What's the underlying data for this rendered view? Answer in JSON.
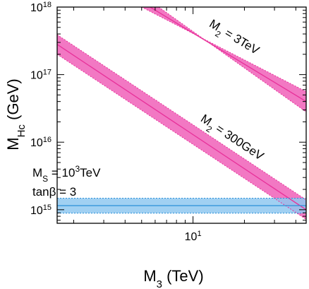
{
  "chart_data": {
    "type": "line",
    "xlabel": "M",
    "xlabel_sub": "3",
    "xlabel_unit": " (TeV)",
    "ylabel": "M",
    "ylabel_sub": "Hc",
    "ylabel_unit": " (GeV)",
    "xscale": "log",
    "yscale": "log",
    "xlim": [
      1.6,
      46
    ],
    "ylim": [
      630000000000000.0,
      1e+18
    ],
    "grid": false,
    "x_ticks": [
      {
        "value": 10,
        "base": "10",
        "exp": "1"
      }
    ],
    "y_ticks": [
      {
        "value": 1000000000000000.0,
        "base": "10",
        "exp": "15"
      },
      {
        "value": 1e+16,
        "base": "10",
        "exp": "16"
      },
      {
        "value": 1e+17,
        "base": "10",
        "exp": "17"
      },
      {
        "value": 1e+18,
        "base": "10",
        "exp": "18"
      }
    ],
    "series": [
      {
        "name": "M2 = 3TeV",
        "label_main": "M",
        "label_sub": "2",
        "label_rest": " = 3TeV",
        "color": "#e8319a",
        "band_color": "#f060b8",
        "points": [
          [
            5.6,
            1e+18
          ],
          [
            46,
            4e+16
          ]
        ],
        "band_upper": [
          [
            5.0,
            1e+18
          ],
          [
            46,
            5.6e+16
          ]
        ],
        "band_lower": [
          [
            6.3,
            1e+18
          ],
          [
            46,
            2.8e+16
          ]
        ]
      },
      {
        "name": "M2 = 300GeV",
        "label_main": "M",
        "label_sub": "2",
        "label_rest": " = 300GeV",
        "color": "#e8319a",
        "band_color": "#f060b8",
        "points": [
          [
            1.6,
            2.8e+17
          ],
          [
            46,
            1000000000000000.0
          ]
        ],
        "band_upper": [
          [
            1.6,
            3.9e+17
          ],
          [
            46,
            1400000000000000.0
          ]
        ],
        "band_lower": [
          [
            1.6,
            2e+17
          ],
          [
            46,
            720000000000000.0
          ]
        ]
      },
      {
        "name": "horizontal band",
        "color": "#2a8fd8",
        "band_color": "#8fc8f0",
        "points": [
          [
            1.6,
            1150000000000000.0
          ],
          [
            46,
            1150000000000000.0
          ]
        ],
        "band_upper": [
          [
            1.6,
            1480000000000000.0
          ],
          [
            46,
            1480000000000000.0
          ]
        ],
        "band_lower": [
          [
            1.6,
            890000000000000.0
          ],
          [
            46,
            890000000000000.0
          ]
        ]
      }
    ],
    "annotations": {
      "ms_main": "M",
      "ms_sub": "S",
      "ms_mid": " = 10",
      "ms_exp": "3",
      "ms_unit": "TeV",
      "tanb": "tanβ = 3"
    }
  }
}
